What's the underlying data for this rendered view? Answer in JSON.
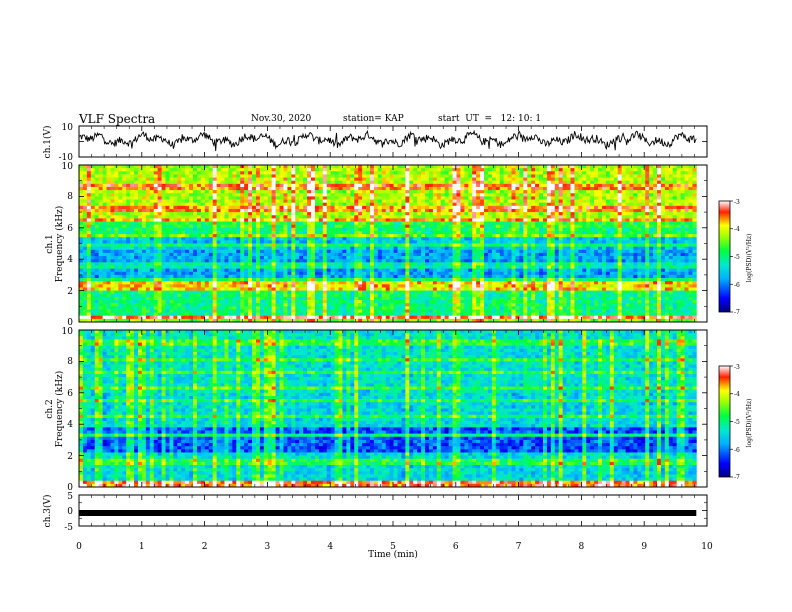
{
  "header": {
    "title": "VLF Spectra",
    "date": "Nov.30, 2020",
    "station": "station= KAP",
    "start": "start  UT  =   12: 10: 1"
  },
  "chart_data": [
    {
      "type": "line",
      "panel": "ch1-waveform",
      "ylabel": "ch.1(V)",
      "ylim": [
        -10,
        10
      ],
      "yticks": [
        "10",
        "-10"
      ],
      "xlim": [
        0,
        10
      ],
      "x_end": 9.83,
      "description_values": "noisy waveform oscillating roughly between -4 and 7 V",
      "approx_range": [
        -4,
        7
      ]
    },
    {
      "type": "heatmap",
      "panel": "ch1-spectrogram",
      "ylabel": "ch.1\nFrequency (kHz)",
      "ylabel_lines": [
        "ch.1",
        "Frequency (kHz)"
      ],
      "ylim": [
        0,
        10
      ],
      "yticks": [
        "0",
        "2",
        "4",
        "6",
        "8",
        "10"
      ],
      "xlim": [
        0,
        10
      ],
      "x_end": 9.83,
      "colorbar": {
        "label": "log(PSD)(V²/Hz)",
        "range": [
          -7,
          -3
        ],
        "ticks": [
          "-3",
          "-4",
          "-5",
          "-6",
          "-7"
        ]
      },
      "strong_lines_khz": [
        0.3,
        2.2,
        2.4,
        5.5,
        6.5
      ],
      "weak_lines_khz": [
        3.6,
        4.9,
        5.8,
        7.2,
        8.6
      ]
    },
    {
      "type": "heatmap",
      "panel": "ch2-spectrogram",
      "ylabel": "ch.2\nFrequency (kHz)",
      "ylabel_lines": [
        "ch.2",
        "Frequency (kHz)"
      ],
      "ylim": [
        0,
        10
      ],
      "yticks": [
        "0",
        "2",
        "4",
        "6",
        "8",
        "10"
      ],
      "xlim": [
        0,
        10
      ],
      "x_end": 9.83,
      "colorbar": {
        "label": "log(PSD)(V²/Hz)",
        "range": [
          -7,
          -3
        ],
        "ticks": [
          "-3",
          "-4",
          "-5",
          "-6",
          "-7"
        ]
      },
      "strong_lines_khz": [
        0.2,
        0.35,
        3.3
      ],
      "weak_lines_khz": [
        1.6,
        4.5,
        5.5,
        6.3,
        7.3,
        8.1,
        9.2
      ]
    },
    {
      "type": "line",
      "panel": "ch3-waveform",
      "ylabel": "ch.3(V)",
      "ylim": [
        -5,
        5
      ],
      "yticks": [
        "5",
        "0",
        "-5"
      ],
      "xlim": [
        0,
        10
      ],
      "x_end": 9.83,
      "xlabel": "Time  (min)",
      "xticks": [
        "0",
        "1",
        "2",
        "3",
        "4",
        "5",
        "6",
        "7",
        "8",
        "9",
        "10"
      ],
      "approx_level": -0.8
    }
  ]
}
